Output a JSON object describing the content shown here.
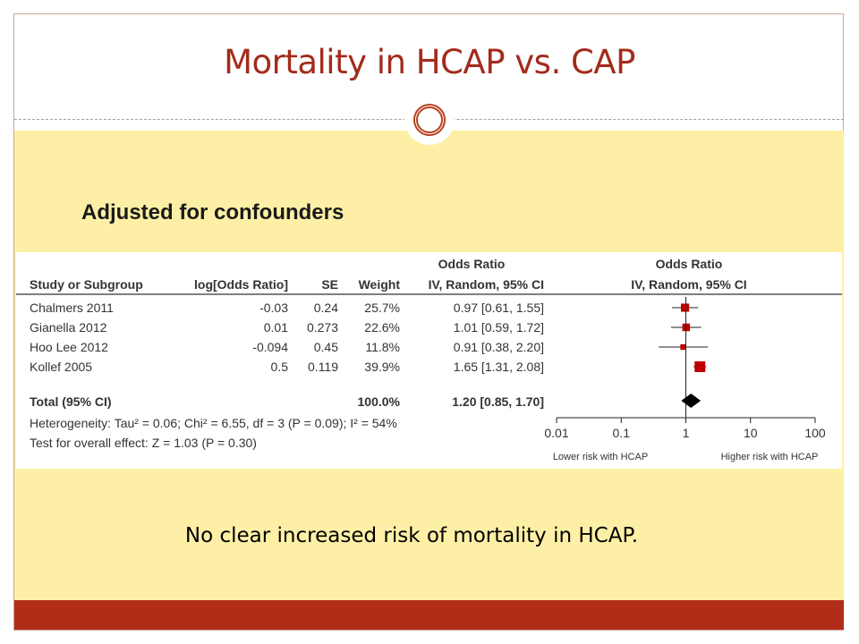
{
  "slide": {
    "title": "Mortality in HCAP vs. CAP",
    "subtitle": "Adjusted for confounders",
    "conclusion": "No clear increased risk of mortality in HCAP."
  },
  "colors": {
    "title": "#a32b1b",
    "accent_bar": "#b12d18",
    "background_panel": "#fdf0a6",
    "marker": "#c00000"
  },
  "chart_data": {
    "type": "forest",
    "headers": {
      "group1": "Odds Ratio",
      "group2": "Odds Ratio",
      "study": "Study or Subgroup",
      "log": "log[Odds Ratio]",
      "se": "SE",
      "weight": "Weight",
      "ci": "IV, Random, 95% CI",
      "plot_ci": "IV, Random, 95% CI"
    },
    "studies": [
      {
        "name": "Chalmers 2011",
        "log_or": "-0.03",
        "se": "0.24",
        "weight": "25.7%",
        "ci_text": "0.97 [0.61, 1.55]",
        "or": 0.97,
        "lo": 0.61,
        "hi": 1.55,
        "w": 25.7
      },
      {
        "name": "Gianella 2012",
        "log_or": "0.01",
        "se": "0.273",
        "weight": "22.6%",
        "ci_text": "1.01 [0.59, 1.72]",
        "or": 1.01,
        "lo": 0.59,
        "hi": 1.72,
        "w": 22.6
      },
      {
        "name": "Hoo Lee 2012",
        "log_or": "-0.094",
        "se": "0.45",
        "weight": "11.8%",
        "ci_text": "0.91 [0.38, 2.20]",
        "or": 0.91,
        "lo": 0.38,
        "hi": 2.2,
        "w": 11.8
      },
      {
        "name": "Kollef 2005",
        "log_or": "0.5",
        "se": "0.119",
        "weight": "39.9%",
        "ci_text": "1.65 [1.31, 2.08]",
        "or": 1.65,
        "lo": 1.31,
        "hi": 2.08,
        "w": 39.9
      }
    ],
    "total": {
      "label": "Total (95% CI)",
      "weight": "100.0%",
      "ci_text": "1.20 [0.85, 1.70]",
      "or": 1.2,
      "lo": 0.85,
      "hi": 1.7
    },
    "heterogeneity": "Heterogeneity: Tau² = 0.06; Chi² = 6.55, df = 3 (P = 0.09); I² = 54%",
    "overall_effect": "Test for overall effect: Z = 1.03 (P = 0.30)",
    "x_scale": "log",
    "x_ticks": [
      0.01,
      0.1,
      1,
      10,
      100
    ],
    "x_tick_labels": [
      "0.01",
      "0.1",
      "1",
      "10",
      "100"
    ],
    "favours_left": "Lower risk with HCAP",
    "favours_right": "Higher risk with HCAP"
  }
}
